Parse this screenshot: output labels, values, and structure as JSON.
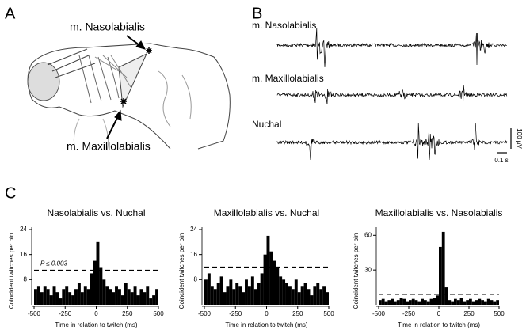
{
  "panels": {
    "a": {
      "letter": "A",
      "label_top": "m. Nasolabialis",
      "label_bottom": "m. Maxillolabialis"
    },
    "b": {
      "letter": "B",
      "traces": [
        "m. Nasolabialis",
        "m. Maxillolabialis",
        "Nuchal"
      ],
      "scale_voltage": "100 µV",
      "scale_time": "0.1 s"
    },
    "c": {
      "letter": "C"
    }
  },
  "chart_data": [
    {
      "type": "histogram",
      "title": "Nasolabialis vs. Nuchal",
      "x_label": "Time in relation to twitch (ms)",
      "y_label": "Coincident twitches per bin",
      "color": "#000000",
      "bins": [
        -500,
        -475,
        -450,
        -425,
        -400,
        -375,
        -350,
        -325,
        -300,
        -275,
        -250,
        -225,
        -200,
        -175,
        -150,
        -125,
        -100,
        -75,
        -50,
        -25,
        0,
        25,
        50,
        75,
        100,
        125,
        150,
        175,
        200,
        225,
        250,
        275,
        300,
        325,
        350,
        375,
        400,
        425,
        450,
        475,
        500
      ],
      "values": [
        5,
        6,
        4,
        6,
        5,
        3,
        6,
        4,
        2,
        5,
        6,
        4,
        3,
        5,
        7,
        4,
        6,
        5,
        10,
        14,
        20,
        12,
        8,
        6,
        5,
        4,
        6,
        5,
        3,
        7,
        5,
        4,
        6,
        3,
        5,
        4,
        6,
        2,
        3,
        5
      ],
      "xlim": [
        -500,
        500
      ],
      "xticks": [
        -500,
        -250,
        0,
        250,
        500
      ],
      "ylim": [
        0,
        24
      ],
      "yticks": [
        8,
        16,
        24
      ],
      "threshold": 11,
      "threshold_label": "P ≤ 0.003"
    },
    {
      "type": "histogram",
      "title": "Maxillolabialis vs. Nuchal",
      "x_label": "Time in relation to twitch (ms)",
      "y_label": "Coincident twitches per bin",
      "color": "#000000",
      "bins": [
        -500,
        -475,
        -450,
        -425,
        -400,
        -375,
        -350,
        -325,
        -300,
        -275,
        -250,
        -225,
        -200,
        -175,
        -150,
        -125,
        -100,
        -75,
        -50,
        -25,
        0,
        25,
        50,
        75,
        100,
        125,
        150,
        175,
        200,
        225,
        250,
        275,
        300,
        325,
        350,
        375,
        400,
        425,
        450,
        475,
        500
      ],
      "values": [
        8,
        10,
        6,
        5,
        7,
        9,
        4,
        6,
        8,
        5,
        7,
        6,
        4,
        8,
        6,
        9,
        5,
        7,
        10,
        16,
        22,
        17,
        14,
        12,
        9,
        8,
        7,
        6,
        5,
        8,
        4,
        6,
        7,
        5,
        3,
        6,
        7,
        5,
        6,
        4
      ],
      "xlim": [
        -500,
        500
      ],
      "xticks": [
        -500,
        -250,
        0,
        250,
        500
      ],
      "ylim": [
        0,
        24
      ],
      "yticks": [
        8,
        16,
        24
      ],
      "threshold": 12
    },
    {
      "type": "histogram",
      "title": "Maxillolabialis vs. Nasolabialis",
      "x_label": "Time in relation to twitch (ms)",
      "y_label": "Coincident twitches per bin",
      "color": "#000000",
      "bins": [
        -500,
        -475,
        -450,
        -425,
        -400,
        -375,
        -350,
        -325,
        -300,
        -275,
        -250,
        -225,
        -200,
        -175,
        -150,
        -125,
        -100,
        -75,
        -50,
        -25,
        0,
        25,
        50,
        75,
        100,
        125,
        150,
        175,
        200,
        225,
        250,
        275,
        300,
        325,
        350,
        375,
        400,
        425,
        450,
        475,
        500
      ],
      "values": [
        4,
        5,
        3,
        4,
        5,
        3,
        4,
        6,
        5,
        3,
        4,
        5,
        4,
        3,
        5,
        4,
        3,
        5,
        6,
        8,
        50,
        63,
        15,
        4,
        3,
        5,
        4,
        6,
        3,
        4,
        5,
        3,
        4,
        5,
        4,
        3,
        5,
        4,
        3,
        4
      ],
      "xlim": [
        -500,
        500
      ],
      "xticks": [
        -500,
        -250,
        0,
        250,
        500
      ],
      "ylim": [
        0,
        65
      ],
      "yticks": [
        30,
        60
      ],
      "threshold": 9
    }
  ]
}
